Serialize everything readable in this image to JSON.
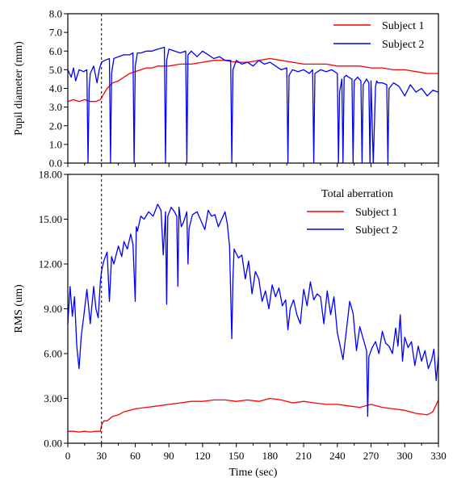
{
  "chart_data": [
    {
      "type": "line",
      "ylabel": "Pupil diameter (mm)",
      "xlabel": "",
      "xlim": [
        0,
        330
      ],
      "ylim": [
        0,
        8
      ],
      "x_ticks": [
        0,
        30,
        60,
        90,
        120,
        150,
        180,
        210,
        240,
        270,
        300,
        330
      ],
      "y_ticks": [
        0.0,
        1.0,
        2.0,
        3.0,
        4.0,
        5.0,
        6.0,
        7.0,
        8.0
      ],
      "y_tick_labels": [
        "0.0",
        "1.0",
        "2.0",
        "3.0",
        "4.0",
        "5.0",
        "6.0",
        "7.0",
        "8.0"
      ],
      "vline_x": 30,
      "legend_position": "top-right",
      "legend_title": "",
      "series": [
        {
          "name": "Subject 1",
          "color": "#ff0000",
          "x": [
            0,
            5,
            10,
            15,
            20,
            25,
            29,
            32,
            35,
            40,
            45,
            50,
            55,
            60,
            65,
            70,
            75,
            80,
            85,
            90,
            100,
            110,
            120,
            130,
            140,
            150,
            160,
            170,
            180,
            190,
            200,
            210,
            220,
            230,
            240,
            250,
            260,
            270,
            280,
            290,
            300,
            310,
            320,
            330
          ],
          "values": [
            3.3,
            3.4,
            3.3,
            3.4,
            3.3,
            3.3,
            3.4,
            3.7,
            4.0,
            4.3,
            4.4,
            4.6,
            4.8,
            4.9,
            5.0,
            5.1,
            5.1,
            5.2,
            5.2,
            5.2,
            5.3,
            5.3,
            5.4,
            5.5,
            5.5,
            5.4,
            5.4,
            5.5,
            5.6,
            5.5,
            5.4,
            5.3,
            5.3,
            5.3,
            5.2,
            5.2,
            5.2,
            5.1,
            5.1,
            5.0,
            5.0,
            4.9,
            4.8,
            4.8
          ]
        },
        {
          "name": "Subject 2",
          "color": "#0000ff",
          "x": [
            0,
            3,
            5,
            7,
            10,
            14,
            17,
            18,
            19,
            20,
            23,
            26,
            28,
            30,
            33,
            37,
            38,
            39,
            41,
            45,
            50,
            55,
            58,
            59,
            60,
            62,
            65,
            70,
            75,
            80,
            86,
            87,
            88,
            90,
            95,
            100,
            105,
            106,
            107,
            110,
            115,
            120,
            125,
            130,
            135,
            140,
            145,
            146,
            147,
            150,
            155,
            160,
            165,
            170,
            175,
            180,
            185,
            190,
            195,
            196,
            197,
            200,
            205,
            210,
            215,
            218,
            219,
            220,
            225,
            230,
            235,
            240,
            241,
            242,
            244,
            245,
            246,
            248,
            250,
            253,
            254,
            255,
            258,
            261,
            262,
            263,
            266,
            268,
            269,
            270,
            272,
            274,
            275,
            276,
            280,
            284,
            285,
            286,
            290,
            295,
            300,
            305,
            310,
            315,
            320,
            325,
            330
          ],
          "values": [
            5.0,
            4.6,
            5.1,
            4.4,
            5.0,
            4.9,
            5.0,
            0.0,
            4.0,
            4.8,
            5.2,
            4.3,
            5.0,
            5.4,
            5.5,
            5.6,
            0.0,
            4.8,
            5.6,
            5.7,
            5.8,
            5.8,
            5.9,
            0.0,
            5.2,
            5.9,
            5.9,
            6.0,
            6.0,
            6.1,
            6.2,
            0.0,
            5.5,
            6.1,
            6.0,
            5.9,
            6.0,
            0.0,
            5.8,
            6.0,
            5.7,
            6.0,
            5.8,
            5.6,
            5.7,
            5.5,
            5.5,
            0.0,
            5.0,
            5.5,
            5.3,
            5.4,
            5.2,
            5.5,
            5.3,
            5.4,
            5.2,
            5.0,
            5.1,
            0.0,
            4.7,
            5.0,
            4.9,
            5.0,
            4.8,
            5.0,
            0.0,
            4.8,
            5.0,
            4.9,
            5.0,
            4.8,
            0.0,
            3.8,
            4.5,
            0.0,
            4.6,
            4.7,
            4.6,
            4.5,
            0.0,
            4.4,
            4.6,
            4.4,
            0.0,
            4.2,
            4.5,
            4.3,
            0.0,
            4.4,
            0.0,
            4.1,
            4.4,
            4.3,
            4.3,
            4.2,
            0.0,
            4.0,
            4.3,
            4.1,
            3.6,
            4.2,
            3.8,
            4.0,
            3.6,
            3.9,
            3.8
          ]
        }
      ]
    },
    {
      "type": "line",
      "ylabel": "RMS (um)",
      "xlabel": "Time (sec)",
      "xlim": [
        0,
        330
      ],
      "ylim": [
        0,
        18
      ],
      "x_ticks": [
        0,
        30,
        60,
        90,
        120,
        150,
        180,
        210,
        240,
        270,
        300,
        330
      ],
      "y_ticks": [
        0,
        3,
        6,
        9,
        12,
        15,
        18
      ],
      "y_tick_labels": [
        "0.00",
        "3.00",
        "6.00",
        "9.00",
        "12.00",
        "15.00",
        "18.00"
      ],
      "vline_x": 30,
      "legend_position": "top-right",
      "legend_title": "Total aberration",
      "series": [
        {
          "name": "Subject 1",
          "color": "#ff0000",
          "x": [
            0,
            5,
            10,
            15,
            20,
            25,
            29,
            30,
            32,
            35,
            40,
            45,
            50,
            55,
            60,
            70,
            80,
            90,
            100,
            110,
            120,
            130,
            140,
            150,
            160,
            170,
            180,
            190,
            200,
            210,
            220,
            230,
            240,
            250,
            260,
            270,
            280,
            290,
            300,
            310,
            320,
            325,
            330
          ],
          "values": [
            0.8,
            0.8,
            0.75,
            0.8,
            0.75,
            0.8,
            0.8,
            1.2,
            1.5,
            1.5,
            1.8,
            1.9,
            2.1,
            2.2,
            2.3,
            2.4,
            2.5,
            2.6,
            2.7,
            2.8,
            2.8,
            2.9,
            2.9,
            2.8,
            2.9,
            2.8,
            3.0,
            2.9,
            2.7,
            2.8,
            2.7,
            2.6,
            2.6,
            2.5,
            2.4,
            2.6,
            2.4,
            2.3,
            2.2,
            2.0,
            1.9,
            2.1,
            2.9
          ]
        },
        {
          "name": "Subject 2",
          "color": "#0000ff",
          "x": [
            0,
            2,
            4,
            6,
            8,
            10,
            12,
            14,
            17,
            20,
            23,
            25,
            27,
            29,
            30,
            32,
            35,
            37,
            39,
            41,
            45,
            48,
            50,
            53,
            56,
            58,
            60,
            61,
            62,
            65,
            68,
            72,
            76,
            80,
            83,
            85,
            87,
            88,
            89,
            92,
            95,
            97,
            98,
            99,
            101,
            103,
            106,
            107,
            108,
            111,
            115,
            118,
            122,
            125,
            128,
            131,
            134,
            137,
            140,
            142,
            144,
            145,
            146,
            147,
            148,
            152,
            155,
            158,
            161,
            164,
            167,
            170,
            173,
            176,
            179,
            182,
            185,
            188,
            191,
            194,
            196,
            198,
            201,
            204,
            207,
            210,
            213,
            216,
            219,
            222,
            225,
            228,
            231,
            234,
            237,
            240,
            242,
            245,
            248,
            251,
            254,
            257,
            260,
            263,
            266,
            267,
            268,
            271,
            274,
            277,
            280,
            283,
            286,
            289,
            292,
            294,
            296,
            298,
            300,
            303,
            306,
            309,
            312,
            315,
            318,
            321,
            324,
            326,
            328,
            330
          ],
          "values": [
            8.0,
            10.5,
            8.5,
            9.8,
            6.5,
            5.0,
            7.2,
            8.4,
            10.3,
            8.0,
            10.5,
            9.0,
            8.4,
            10.8,
            11.5,
            12.2,
            12.8,
            9.5,
            12.5,
            12.0,
            13.2,
            12.5,
            13.5,
            13.0,
            14.0,
            13.3,
            9.5,
            14.5,
            14.2,
            15.2,
            15.0,
            15.5,
            15.2,
            16.0,
            15.6,
            12.6,
            15.5,
            9.3,
            15.2,
            15.8,
            15.5,
            15.2,
            10.5,
            15.8,
            14.5,
            14.8,
            15.5,
            12.0,
            14.4,
            15.3,
            15.5,
            15.0,
            14.3,
            15.6,
            15.2,
            15.3,
            14.5,
            15.0,
            15.5,
            14.7,
            13.2,
            10.0,
            7.0,
            11.0,
            13.0,
            12.4,
            12.6,
            11.0,
            12.2,
            10.0,
            11.5,
            11.0,
            9.5,
            10.2,
            9.0,
            10.6,
            9.8,
            10.4,
            9.2,
            9.6,
            7.6,
            9.0,
            9.6,
            8.6,
            8.0,
            10.3,
            9.2,
            10.8,
            9.6,
            10.0,
            9.8,
            8.0,
            10.2,
            8.6,
            9.8,
            7.4,
            6.7,
            5.6,
            7.5,
            9.5,
            8.7,
            6.2,
            7.8,
            7.0,
            6.2,
            1.8,
            5.8,
            6.4,
            6.8,
            6.0,
            7.5,
            6.7,
            6.5,
            6.0,
            7.7,
            6.5,
            8.6,
            5.5,
            7.1,
            6.4,
            6.8,
            5.2,
            6.5,
            5.5,
            6.2,
            5.0,
            5.6,
            6.3,
            4.2,
            5.8
          ]
        }
      ]
    }
  ]
}
